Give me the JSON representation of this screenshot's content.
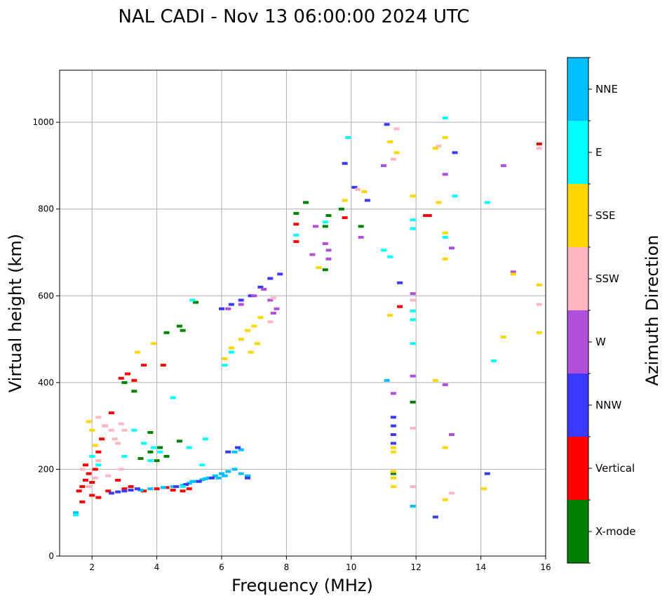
{
  "chart_data": {
    "type": "scatter",
    "title": "NAL CADI - Nov 13 06:00:00 2024 UTC",
    "xlabel": "Frequency (MHz)",
    "ylabel": "Virtual height (km)",
    "xlim": [
      1,
      16
    ],
    "ylim": [
      0,
      1120
    ],
    "xticks": [
      "2",
      "4",
      "6",
      "8",
      "10",
      "12",
      "14",
      "16"
    ],
    "yticks": [
      "0",
      "200",
      "400",
      "600",
      "800",
      "1000"
    ],
    "grid": true,
    "colorbar": {
      "label": "Azimuth Direction",
      "categories": [
        {
          "name": "X-mode",
          "color": "#008000"
        },
        {
          "name": "Vertical",
          "color": "#ff0000"
        },
        {
          "name": "NNW",
          "color": "#3a3aff"
        },
        {
          "name": "W",
          "color": "#b050d8"
        },
        {
          "name": "SSW",
          "color": "#ffb6c1"
        },
        {
          "name": "SSE",
          "color": "#ffd700"
        },
        {
          "name": "E",
          "color": "#00ffff"
        },
        {
          "name": "NNE",
          "color": "#00bfff"
        }
      ]
    },
    "series": [
      {
        "name": "Vertical",
        "category": "Vertical",
        "points": [
          [
            1.6,
            150
          ],
          [
            1.7,
            160
          ],
          [
            1.8,
            175
          ],
          [
            1.9,
            190
          ],
          [
            2.0,
            170
          ],
          [
            2.1,
            200
          ],
          [
            2.2,
            240
          ],
          [
            2.3,
            270
          ],
          [
            2.4,
            300
          ],
          [
            2.6,
            330
          ],
          [
            1.8,
            210
          ],
          [
            2.5,
            150
          ],
          [
            3.0,
            155
          ],
          [
            3.2,
            160
          ],
          [
            3.6,
            150
          ],
          [
            4.0,
            155
          ],
          [
            4.3,
            158
          ],
          [
            4.5,
            152
          ],
          [
            4.8,
            150
          ],
          [
            5.0,
            155
          ],
          [
            2.9,
            410
          ],
          [
            3.1,
            420
          ],
          [
            3.3,
            405
          ],
          [
            3.6,
            440
          ],
          [
            4.2,
            440
          ],
          [
            1.7,
            125
          ],
          [
            2.2,
            135
          ],
          [
            8.3,
            725
          ],
          [
            8.3,
            765
          ],
          [
            9.8,
            780
          ],
          [
            12.4,
            785
          ],
          [
            15.8,
            950
          ],
          [
            11.5,
            575
          ],
          [
            12.3,
            785
          ],
          [
            2.0,
            140
          ],
          [
            2.8,
            175
          ]
        ]
      },
      {
        "name": "NNE",
        "category": "NNE",
        "points": [
          [
            4.5,
            160
          ],
          [
            4.8,
            163
          ],
          [
            5.0,
            168
          ],
          [
            5.2,
            172
          ],
          [
            5.4,
            176
          ],
          [
            5.6,
            180
          ],
          [
            5.8,
            185
          ],
          [
            6.0,
            190
          ],
          [
            6.2,
            195
          ],
          [
            6.4,
            200
          ],
          [
            6.6,
            190
          ],
          [
            6.8,
            185
          ],
          [
            5.1,
            172
          ],
          [
            5.5,
            178
          ],
          [
            3.5,
            152
          ],
          [
            3.8,
            155
          ],
          [
            4.2,
            158
          ],
          [
            6.4,
            240
          ],
          [
            6.6,
            245
          ],
          [
            6.1,
            185
          ],
          [
            5.9,
            180
          ],
          [
            11.1,
            405
          ],
          [
            11.9,
            115
          ],
          [
            1.5,
            100
          ]
        ]
      },
      {
        "name": "NNW",
        "category": "NNW",
        "points": [
          [
            2.6,
            145
          ],
          [
            2.8,
            148
          ],
          [
            3.0,
            150
          ],
          [
            3.2,
            152
          ],
          [
            3.4,
            155
          ],
          [
            4.6,
            160
          ],
          [
            4.9,
            165
          ],
          [
            5.3,
            172
          ],
          [
            5.7,
            180
          ],
          [
            6.2,
            240
          ],
          [
            6.5,
            250
          ],
          [
            6.8,
            180
          ],
          [
            6.0,
            570
          ],
          [
            6.3,
            580
          ],
          [
            6.6,
            590
          ],
          [
            6.9,
            600
          ],
          [
            7.2,
            620
          ],
          [
            7.5,
            640
          ],
          [
            7.8,
            650
          ],
          [
            11.3,
            260
          ],
          [
            11.3,
            280
          ],
          [
            11.3,
            300
          ],
          [
            11.3,
            320
          ],
          [
            11.5,
            630
          ],
          [
            12.6,
            90
          ],
          [
            13.2,
            930
          ],
          [
            14.2,
            190
          ],
          [
            11.1,
            995
          ],
          [
            10.5,
            820
          ],
          [
            10.1,
            850
          ],
          [
            9.8,
            905
          ]
        ]
      },
      {
        "name": "X-mode",
        "category": "X-mode",
        "points": [
          [
            3.8,
            240
          ],
          [
            4.0,
            220
          ],
          [
            4.3,
            230
          ],
          [
            4.1,
            250
          ],
          [
            3.5,
            225
          ],
          [
            4.7,
            265
          ],
          [
            3.8,
            285
          ],
          [
            3.3,
            380
          ],
          [
            3.0,
            400
          ],
          [
            4.3,
            515
          ],
          [
            4.8,
            520
          ],
          [
            5.2,
            585
          ],
          [
            8.3,
            790
          ],
          [
            8.6,
            815
          ],
          [
            9.2,
            760
          ],
          [
            9.3,
            785
          ],
          [
            9.7,
            800
          ],
          [
            10.3,
            760
          ],
          [
            11.9,
            355
          ],
          [
            11.3,
            190
          ],
          [
            9.2,
            660
          ],
          [
            4.7,
            530
          ]
        ]
      },
      {
        "name": "W",
        "category": "W",
        "points": [
          [
            6.6,
            580
          ],
          [
            7.0,
            600
          ],
          [
            7.3,
            615
          ],
          [
            7.7,
            570
          ],
          [
            7.5,
            590
          ],
          [
            7.6,
            560
          ],
          [
            6.2,
            570
          ],
          [
            8.8,
            695
          ],
          [
            9.3,
            705
          ],
          [
            9.2,
            720
          ],
          [
            8.9,
            760
          ],
          [
            11.0,
            900
          ],
          [
            11.9,
            415
          ],
          [
            11.9,
            605
          ],
          [
            12.9,
            395
          ],
          [
            13.1,
            280
          ],
          [
            13.1,
            710
          ],
          [
            12.9,
            880
          ],
          [
            14.7,
            900
          ],
          [
            15.0,
            655
          ],
          [
            10.3,
            735
          ],
          [
            11.3,
            375
          ],
          [
            9.3,
            685
          ]
        ]
      },
      {
        "name": "SSW",
        "category": "SSW",
        "points": [
          [
            2.2,
            320
          ],
          [
            2.4,
            300
          ],
          [
            2.6,
            290
          ],
          [
            2.7,
            270
          ],
          [
            2.9,
            305
          ],
          [
            3.0,
            290
          ],
          [
            2.8,
            260
          ],
          [
            2.2,
            220
          ],
          [
            2.5,
            185
          ],
          [
            2.9,
            200
          ],
          [
            2.1,
            180
          ],
          [
            1.7,
            200
          ],
          [
            1.9,
            160
          ],
          [
            7.5,
            540
          ],
          [
            7.6,
            595
          ],
          [
            11.9,
            590
          ],
          [
            11.9,
            295
          ],
          [
            12.7,
            945
          ],
          [
            13.1,
            145
          ],
          [
            15.8,
            580
          ],
          [
            15.8,
            940
          ],
          [
            10.2,
            845
          ],
          [
            11.4,
            985
          ],
          [
            11.9,
            160
          ],
          [
            11.3,
            915
          ]
        ]
      },
      {
        "name": "SSE",
        "category": "SSE",
        "points": [
          [
            1.9,
            310
          ],
          [
            2.0,
            290
          ],
          [
            2.1,
            255
          ],
          [
            3.4,
            470
          ],
          [
            3.9,
            490
          ],
          [
            6.1,
            455
          ],
          [
            6.3,
            480
          ],
          [
            6.6,
            500
          ],
          [
            6.8,
            520
          ],
          [
            7.0,
            530
          ],
          [
            7.2,
            550
          ],
          [
            6.9,
            470
          ],
          [
            7.1,
            490
          ],
          [
            9.0,
            665
          ],
          [
            9.8,
            820
          ],
          [
            10.4,
            840
          ],
          [
            11.2,
            955
          ],
          [
            11.4,
            930
          ],
          [
            11.3,
            160
          ],
          [
            11.3,
            180
          ],
          [
            11.3,
            195
          ],
          [
            11.3,
            240
          ],
          [
            11.3,
            250
          ],
          [
            11.9,
            830
          ],
          [
            12.7,
            815
          ],
          [
            12.6,
            940
          ],
          [
            12.9,
            745
          ],
          [
            12.9,
            685
          ],
          [
            12.9,
            250
          ],
          [
            12.9,
            130
          ],
          [
            12.9,
            965
          ],
          [
            14.1,
            155
          ],
          [
            14.7,
            505
          ],
          [
            15.8,
            515
          ],
          [
            15.8,
            625
          ],
          [
            15.0,
            650
          ],
          [
            12.6,
            405
          ],
          [
            11.2,
            555
          ]
        ]
      },
      {
        "name": "E",
        "category": "E",
        "points": [
          [
            2.0,
            230
          ],
          [
            2.2,
            210
          ],
          [
            3.0,
            230
          ],
          [
            3.3,
            290
          ],
          [
            3.6,
            260
          ],
          [
            3.9,
            250
          ],
          [
            4.1,
            240
          ],
          [
            5.5,
            270
          ],
          [
            5.0,
            250
          ],
          [
            5.4,
            210
          ],
          [
            4.8,
            160
          ],
          [
            3.8,
            220
          ],
          [
            6.1,
            440
          ],
          [
            6.3,
            470
          ],
          [
            5.1,
            590
          ],
          [
            8.3,
            740
          ],
          [
            9.2,
            770
          ],
          [
            9.9,
            965
          ],
          [
            11.0,
            705
          ],
          [
            11.9,
            775
          ],
          [
            11.9,
            755
          ],
          [
            11.9,
            545
          ],
          [
            11.9,
            490
          ],
          [
            11.9,
            565
          ],
          [
            12.9,
            1010
          ],
          [
            12.9,
            735
          ],
          [
            13.2,
            830
          ],
          [
            14.2,
            815
          ],
          [
            14.4,
            450
          ],
          [
            4.5,
            365
          ],
          [
            11.2,
            690
          ],
          [
            1.5,
            95
          ]
        ]
      }
    ]
  }
}
